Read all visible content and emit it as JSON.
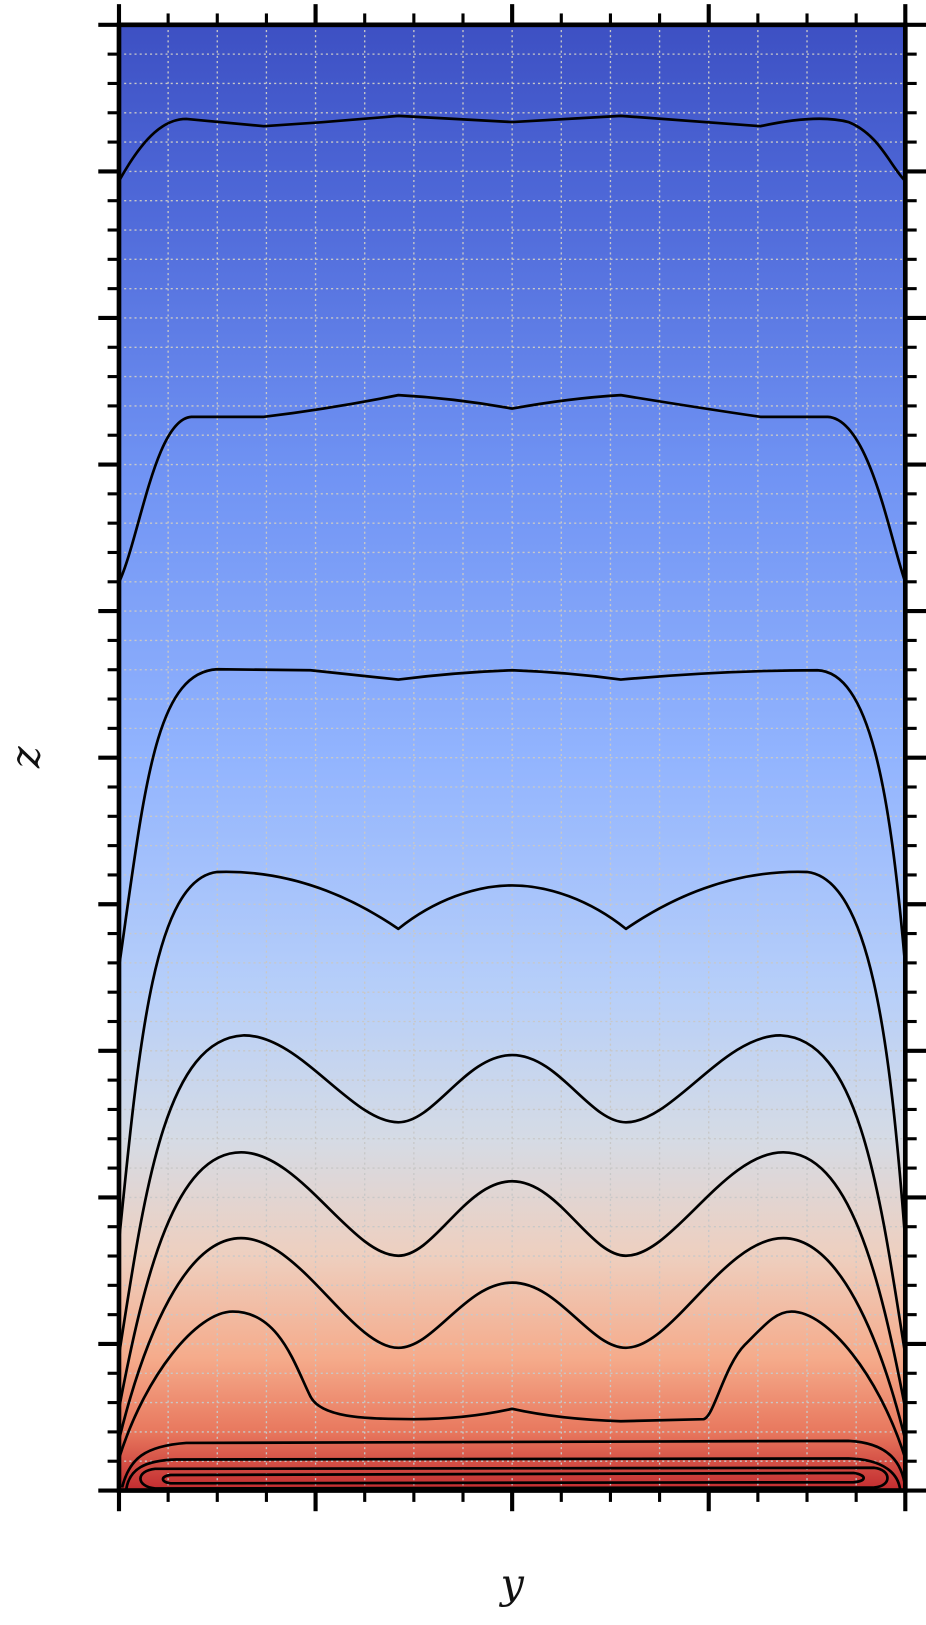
{
  "chart_data": {
    "type": "contour",
    "xlabel": "y",
    "ylabel": "z"
  }
}
